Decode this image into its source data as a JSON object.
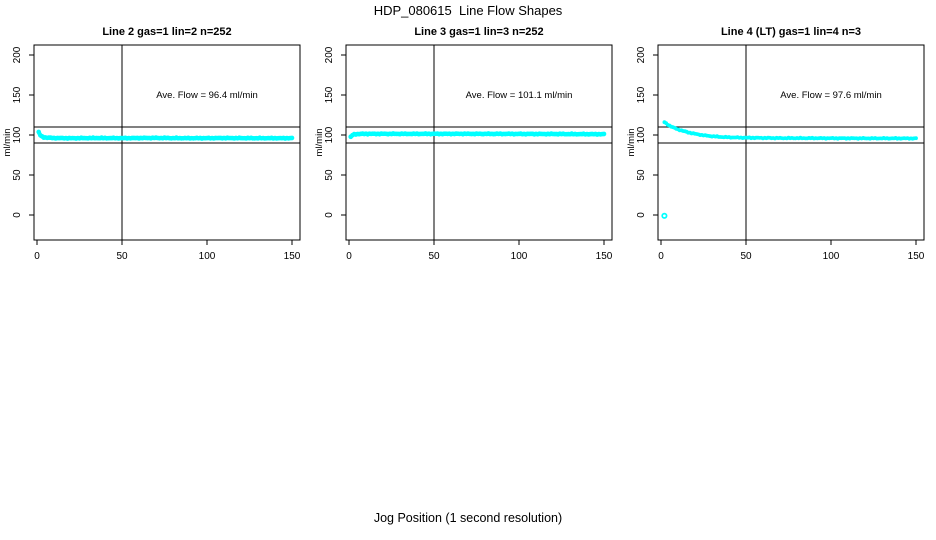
{
  "page": {
    "main_title": "HDP_080615  Line Flow Shapes",
    "x_axis_label": "Jog Position (1 second resolution)"
  },
  "chart_data": [
    {
      "type": "scatter",
      "id": "panel-line2",
      "title": "Line 2 gas=1 lin=2 n=252",
      "annotation": "Ave. Flow =  96.4  ml/min",
      "ave_flow_ml_min": 96.4,
      "n_points": 252,
      "ylabel": "ml/min",
      "xlim": [
        0,
        150
      ],
      "ylim": [
        0,
        200
      ],
      "x_ticks": [
        0,
        50,
        100,
        150
      ],
      "y_ticks": [
        0,
        50,
        100,
        150,
        200
      ],
      "vline_x": 50,
      "hlines": [
        90,
        110
      ],
      "grid": false,
      "color": "#00FFFF",
      "band_width": 4.2,
      "marker_r": 2.3,
      "band_points": [
        [
          1,
          103.5
        ],
        [
          2,
          99.5
        ],
        [
          3,
          98.0
        ],
        [
          4,
          97.2
        ],
        [
          6,
          96.6
        ],
        [
          10,
          96.2
        ],
        [
          20,
          96.0
        ],
        [
          35,
          96.2
        ],
        [
          50,
          96.1
        ],
        [
          70,
          96.3
        ],
        [
          90,
          96.0
        ],
        [
          110,
          96.2
        ],
        [
          130,
          96.0
        ],
        [
          150,
          96.0
        ]
      ],
      "outlier_points": []
    },
    {
      "type": "scatter",
      "id": "panel-line3",
      "title": "Line 3 gas=1 lin=3 n=252",
      "annotation": "Ave. Flow =  101.1  ml/min",
      "ave_flow_ml_min": 101.1,
      "n_points": 252,
      "ylabel": "ml/min",
      "xlim": [
        0,
        150
      ],
      "ylim": [
        0,
        200
      ],
      "x_ticks": [
        0,
        50,
        100,
        150
      ],
      "y_ticks": [
        0,
        50,
        100,
        150,
        200
      ],
      "vline_x": 50,
      "hlines": [
        90,
        110
      ],
      "grid": false,
      "color": "#00FFFF",
      "band_width": 4.2,
      "marker_r": 2.3,
      "band_points": [
        [
          1,
          97.5
        ],
        [
          2,
          99.8
        ],
        [
          3,
          100.8
        ],
        [
          5,
          101.2
        ],
        [
          10,
          101.4
        ],
        [
          25,
          101.4
        ],
        [
          50,
          101.4
        ],
        [
          75,
          101.4
        ],
        [
          100,
          101.3
        ],
        [
          125,
          101.2
        ],
        [
          150,
          101.0
        ]
      ],
      "outlier_points": []
    },
    {
      "type": "scatter",
      "id": "panel-line4",
      "title": "Line 4 (LT) gas=1 lin=4 n=3",
      "annotation": "Ave. Flow =  97.6  ml/min",
      "ave_flow_ml_min": 97.6,
      "n_points": 3,
      "ylabel": "ml/min",
      "xlim": [
        0,
        150
      ],
      "ylim": [
        0,
        200
      ],
      "x_ticks": [
        0,
        50,
        100,
        150
      ],
      "y_ticks": [
        0,
        50,
        100,
        150,
        200
      ],
      "vline_x": 50,
      "hlines": [
        90,
        110
      ],
      "grid": false,
      "color": "#00FFFF",
      "band_width": 3.0,
      "marker_r": 1.9,
      "band_points": [
        [
          2,
          116
        ],
        [
          3,
          114.5
        ],
        [
          4,
          113
        ],
        [
          5,
          111.8
        ],
        [
          6,
          110.6
        ],
        [
          8,
          108.6
        ],
        [
          10,
          107
        ],
        [
          13,
          105
        ],
        [
          16,
          103.3
        ],
        [
          20,
          101.4
        ],
        [
          25,
          99.6
        ],
        [
          30,
          98.4
        ],
        [
          35,
          97.6
        ],
        [
          40,
          97.1
        ],
        [
          45,
          96.8
        ],
        [
          50,
          96.6
        ],
        [
          60,
          96.3
        ],
        [
          75,
          96.1
        ],
        [
          90,
          96.0
        ],
        [
          105,
          95.9
        ],
        [
          120,
          95.8
        ],
        [
          135,
          95.8
        ],
        [
          150,
          95.7
        ]
      ],
      "outlier_points": [
        [
          2,
          -1
        ]
      ]
    }
  ]
}
